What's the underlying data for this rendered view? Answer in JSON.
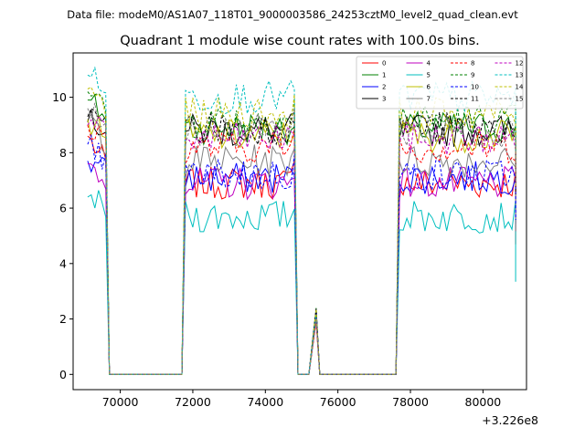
{
  "chart_data": {
    "type": "line",
    "suptitle": "Data file: modeM0/AS1A07_118T01_9000003586_24253cztM0_level2_quad_clean.evt",
    "title": "Quadrant 1 module wise count rates with 100.0s bins.",
    "xlabel": "",
    "ylabel": "",
    "x_offset_label": "+3.226e8",
    "xlim": [
      68700,
      81200
    ],
    "ylim": [
      -0.55,
      11.6
    ],
    "xticks": [
      70000,
      72000,
      74000,
      76000,
      78000,
      80000
    ],
    "yticks": [
      0,
      2,
      4,
      6,
      8,
      10
    ],
    "grid": false,
    "legend": {
      "position": "top-right",
      "ncol": 4
    },
    "segments": [
      {
        "x": [
          69100,
          69600
        ]
      },
      {
        "x": [
          71800,
          74800
        ]
      },
      {
        "x": [
          75400,
          75400
        ]
      },
      {
        "x": [
          77700,
          80900
        ]
      }
    ],
    "series": [
      {
        "name": "0",
        "color": "#ff0000",
        "dash": false,
        "level": 6.9,
        "start": 8.6
      },
      {
        "name": "1",
        "color": "#008000",
        "dash": false,
        "level": 8.9,
        "start": 9.9
      },
      {
        "name": "2",
        "color": "#0000ff",
        "dash": false,
        "level": 7.1,
        "start": 7.7
      },
      {
        "name": "3",
        "color": "#000000",
        "dash": false,
        "level": 8.8,
        "start": 9.1
      },
      {
        "name": "4",
        "color": "#bf00bf",
        "dash": false,
        "level": 6.9,
        "start": 7.6
      },
      {
        "name": "5",
        "color": "#00bfbf",
        "dash": false,
        "level": 5.7,
        "start": 6.4
      },
      {
        "name": "6",
        "color": "#bfbf00",
        "dash": false,
        "level": 8.6,
        "start": 9.2
      },
      {
        "name": "7",
        "color": "#808080",
        "dash": false,
        "level": 7.7,
        "start": 9.4
      },
      {
        "name": "8",
        "color": "#ff0000",
        "dash": true,
        "level": 8.2,
        "start": 9.0
      },
      {
        "name": "9",
        "color": "#008000",
        "dash": true,
        "level": 9.2,
        "start": 10.2
      },
      {
        "name": "10",
        "color": "#0000ff",
        "dash": true,
        "level": 7.2,
        "start": 8.3
      },
      {
        "name": "11",
        "color": "#000000",
        "dash": true,
        "level": 8.9,
        "start": 9.3
      },
      {
        "name": "12",
        "color": "#bf00bf",
        "dash": true,
        "level": 8.5,
        "start": 9.0
      },
      {
        "name": "13",
        "color": "#00bfbf",
        "dash": true,
        "level": 10.0,
        "start": 10.8
      },
      {
        "name": "14",
        "color": "#bfbf00",
        "dash": true,
        "level": 9.4,
        "start": 10.3
      },
      {
        "name": "15",
        "color": "#808080",
        "dash": true,
        "level": 8.8,
        "start": 9.6
      }
    ]
  }
}
